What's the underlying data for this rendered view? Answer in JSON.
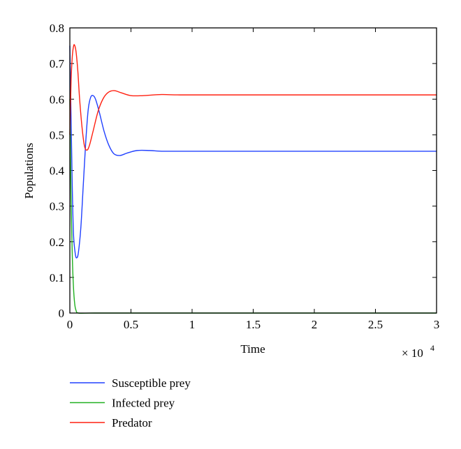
{
  "chart_data": {
    "type": "line",
    "title": "",
    "xlabel": "Time",
    "ylabel": "Populations",
    "x_multiplier": "× 10",
    "x_multiplier_exp": "4",
    "xlim": [
      0,
      3
    ],
    "ylim": [
      0,
      0.8
    ],
    "xticks": [
      "0",
      "0.5",
      "1",
      "1.5",
      "2",
      "2.5",
      "3"
    ],
    "xtick_values": [
      0,
      0.5,
      1,
      1.5,
      2,
      2.5,
      3
    ],
    "yticks": [
      "0",
      "0.1",
      "0.2",
      "0.3",
      "0.4",
      "0.5",
      "0.6",
      "0.7",
      "0.8"
    ],
    "ytick_values": [
      0,
      0.1,
      0.2,
      0.3,
      0.4,
      0.5,
      0.6,
      0.7,
      0.8
    ],
    "grid": false,
    "legend_placement": "below",
    "series": [
      {
        "name": "Susceptible prey",
        "color": "#2040ff",
        "points": [
          [
            0,
            0.75
          ],
          [
            0.01,
            0.55
          ],
          [
            0.02,
            0.35
          ],
          [
            0.03,
            0.22
          ],
          [
            0.045,
            0.165
          ],
          [
            0.057,
            0.155
          ],
          [
            0.07,
            0.17
          ],
          [
            0.09,
            0.24
          ],
          [
            0.11,
            0.36
          ],
          [
            0.13,
            0.48
          ],
          [
            0.15,
            0.57
          ],
          [
            0.17,
            0.605
          ],
          [
            0.19,
            0.61
          ],
          [
            0.21,
            0.6
          ],
          [
            0.24,
            0.565
          ],
          [
            0.28,
            0.51
          ],
          [
            0.32,
            0.47
          ],
          [
            0.36,
            0.447
          ],
          [
            0.41,
            0.442
          ],
          [
            0.47,
            0.449
          ],
          [
            0.55,
            0.456
          ],
          [
            0.65,
            0.456
          ],
          [
            0.75,
            0.454
          ],
          [
            0.9,
            0.454
          ],
          [
            1.5,
            0.454
          ],
          [
            3,
            0.454
          ]
        ]
      },
      {
        "name": "Infected prey",
        "color": "#20b020",
        "points": [
          [
            0,
            0.6
          ],
          [
            0.005,
            0.45
          ],
          [
            0.01,
            0.32
          ],
          [
            0.02,
            0.16
          ],
          [
            0.03,
            0.07
          ],
          [
            0.04,
            0.025
          ],
          [
            0.05,
            0.008
          ],
          [
            0.07,
            0
          ],
          [
            0.2,
            0
          ],
          [
            3,
            0
          ]
        ]
      },
      {
        "name": "Predator",
        "color": "#ff2010",
        "points": [
          [
            0,
            0.5
          ],
          [
            0.01,
            0.65
          ],
          [
            0.02,
            0.72
          ],
          [
            0.03,
            0.748
          ],
          [
            0.038,
            0.752
          ],
          [
            0.05,
            0.735
          ],
          [
            0.065,
            0.68
          ],
          [
            0.08,
            0.6
          ],
          [
            0.1,
            0.52
          ],
          [
            0.12,
            0.468
          ],
          [
            0.14,
            0.457
          ],
          [
            0.16,
            0.47
          ],
          [
            0.19,
            0.51
          ],
          [
            0.23,
            0.565
          ],
          [
            0.27,
            0.6
          ],
          [
            0.31,
            0.618
          ],
          [
            0.36,
            0.624
          ],
          [
            0.42,
            0.618
          ],
          [
            0.5,
            0.61
          ],
          [
            0.6,
            0.61
          ],
          [
            0.75,
            0.613
          ],
          [
            0.9,
            0.612
          ],
          [
            1.5,
            0.612
          ],
          [
            3,
            0.612
          ]
        ]
      }
    ]
  }
}
